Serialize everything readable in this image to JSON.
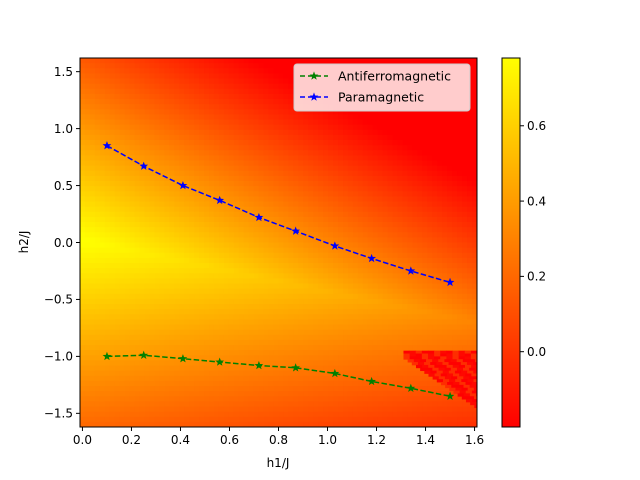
{
  "chart_data": {
    "type": "heatmap",
    "title": "",
    "xlabel": "h1/J",
    "ylabel": "h2/J",
    "xlim": [
      -0.01,
      1.61
    ],
    "ylim": [
      -1.62,
      1.62
    ],
    "xticks": [
      "0.0",
      "0.2",
      "0.4",
      "0.6",
      "0.8",
      "1.0",
      "1.2",
      "1.4",
      "1.6"
    ],
    "yticks": [
      "1.5",
      "1.0",
      "0.5",
      "0.0",
      "−0.5",
      "−1.0",
      "−1.5"
    ],
    "grid": false,
    "legend_position": "top-right",
    "colormap": "autumn",
    "colorbar": {
      "range": [
        -0.2,
        0.78
      ],
      "ticks": [
        "0.6",
        "0.4",
        "0.2",
        "0.0"
      ],
      "low_color": "#ff0000",
      "high_color": "#ffff00"
    },
    "series": [
      {
        "name": "Antiferromagnetic",
        "color": "#008000",
        "linestyle": "dashed",
        "marker": "star",
        "x": [
          0.1,
          0.25,
          0.41,
          0.56,
          0.72,
          0.87,
          1.03,
          1.18,
          1.34,
          1.5
        ],
        "y": [
          -1.0,
          -0.99,
          -1.02,
          -1.05,
          -1.08,
          -1.1,
          -1.15,
          -1.22,
          -1.28,
          -1.35
        ]
      },
      {
        "name": "Paramagnetic",
        "color": "#0000ff",
        "linestyle": "dashed",
        "marker": "star",
        "x": [
          0.1,
          0.25,
          0.41,
          0.56,
          0.72,
          0.87,
          1.03,
          1.18,
          1.34,
          1.5
        ],
        "y": [
          0.85,
          0.67,
          0.5,
          0.37,
          0.22,
          0.1,
          -0.03,
          -0.14,
          -0.25,
          -0.35
        ]
      }
    ]
  }
}
